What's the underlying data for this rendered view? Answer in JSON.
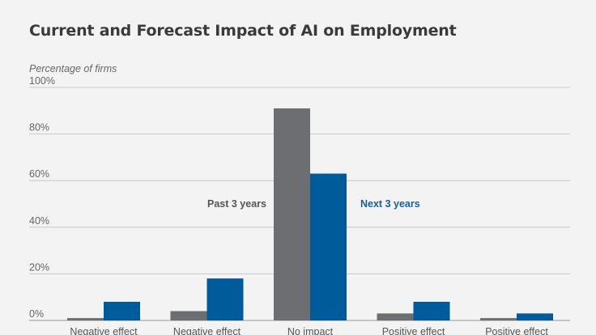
{
  "chart_data": {
    "type": "bar",
    "title": "Current and Forecast Impact of AI on Employment",
    "ylabel": "Percentage of firms",
    "ylim": [
      0,
      100
    ],
    "yticks": [
      "0%",
      "20%",
      "40%",
      "60%",
      "80%",
      "100%"
    ],
    "categories": [
      "Negative effect",
      "Negative effect",
      "No impact",
      "Positive effect",
      "Positive effect"
    ],
    "series": [
      {
        "name": "Past 3 years",
        "color": "#6d6e71",
        "values": [
          1,
          4,
          91,
          3,
          1
        ]
      },
      {
        "name": "Next 3 years",
        "color": "#005b9a",
        "values": [
          8,
          18,
          63,
          8,
          3
        ]
      }
    ],
    "grid": true
  }
}
